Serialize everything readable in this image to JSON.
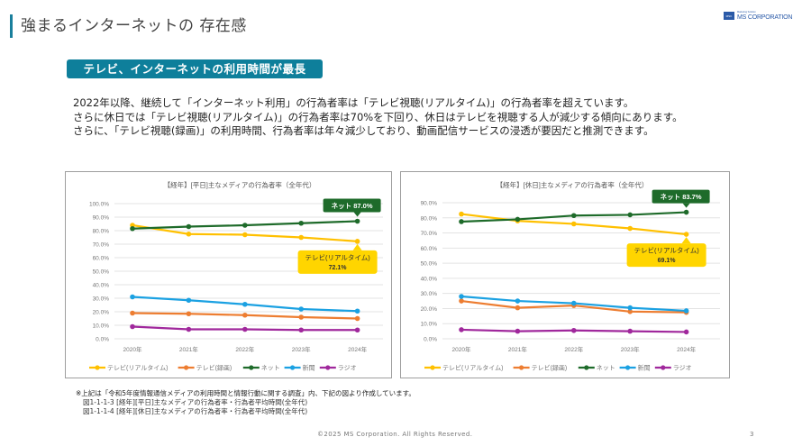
{
  "header": {
    "title": "強まるインターネットの 存在感",
    "logo": {
      "box_text": "MSC",
      "sub_text": "Marketing Solution",
      "main_text": "MS CORPORATION"
    }
  },
  "section": {
    "badge": "テレビ、インターネットの利用時間が最長"
  },
  "intro": {
    "lines": [
      "2022年以降、継続して「インターネット利用」の行為者率は「テレビ視聴(リアルタイム)」の行為者率を超えています。",
      "さらに休日では「テレビ視聴(リアルタイム)」の行為者率は70%を下回り、休日はテレビを視聴する人が減少する傾向にあります。",
      "さらに、「テレビ視聴(録画)」の利用時間、行為者率は年々減少しており、動画配信サービスの浸透が要因だと推測できます。"
    ]
  },
  "colors": {
    "tv_realtime": "#ffc000",
    "tv_recorded": "#ed7d31",
    "net": "#1e6b2a",
    "newspaper": "#1ba1e2",
    "radio": "#a0289c",
    "accent": "#0e7f9b",
    "callout_net": "#1e6b2a",
    "callout_tv": "#ffd500"
  },
  "chart_data": [
    {
      "type": "line",
      "title": "【経年】[平日]主なメディアの行為者率（全年代）",
      "categories": [
        "2020年",
        "2021年",
        "2022年",
        "2023年",
        "2024年"
      ],
      "ylim": [
        0,
        100
      ],
      "yticks": [
        "0.0%",
        "10.0%",
        "20.0%",
        "30.0%",
        "40.0%",
        "50.0%",
        "60.0%",
        "70.0%",
        "80.0%",
        "90.0%",
        "100.0%"
      ],
      "grid": true,
      "legend": "bottom",
      "series": [
        {
          "name": "テレビ(リアルタイム)",
          "key": "tv_realtime",
          "values": [
            84.0,
            77.5,
            77.0,
            75.0,
            72.1
          ]
        },
        {
          "name": "テレビ(録画)",
          "key": "tv_recorded",
          "values": [
            19.0,
            18.5,
            17.5,
            16.0,
            15.0
          ]
        },
        {
          "name": "ネット",
          "key": "net",
          "values": [
            81.5,
            83.0,
            84.0,
            85.5,
            87.0
          ]
        },
        {
          "name": "新聞",
          "key": "newspaper",
          "values": [
            31.0,
            28.5,
            25.5,
            22.0,
            20.5
          ]
        },
        {
          "name": "ラジオ",
          "key": "radio",
          "values": [
            9.0,
            7.0,
            7.0,
            6.5,
            6.5
          ]
        }
      ],
      "annotations": [
        {
          "series": "net",
          "text": "ネット 87.0%",
          "position": "above"
        },
        {
          "series": "tv_realtime",
          "text": "テレビ(リアルタイム)",
          "text2": "72.1%",
          "position": "below"
        }
      ]
    },
    {
      "type": "line",
      "title": "【経年】[休日]主なメディアの行為者率（全年代）",
      "categories": [
        "2020年",
        "2021年",
        "2022年",
        "2023年",
        "2024年"
      ],
      "ylim": [
        0,
        90
      ],
      "yticks": [
        "0.0%",
        "10.0%",
        "20.0%",
        "30.0%",
        "40.0%",
        "50.0%",
        "60.0%",
        "70.0%",
        "80.0%",
        "90.0%"
      ],
      "grid": true,
      "legend": "bottom",
      "series": [
        {
          "name": "テレビ(リアルタイム)",
          "key": "tv_realtime",
          "values": [
            82.5,
            78.0,
            76.0,
            73.0,
            69.1
          ]
        },
        {
          "name": "テレビ(録画)",
          "key": "tv_recorded",
          "values": [
            25.0,
            20.5,
            22.0,
            18.0,
            17.5
          ]
        },
        {
          "name": "ネット",
          "key": "net",
          "values": [
            77.5,
            79.0,
            81.5,
            82.0,
            83.7
          ]
        },
        {
          "name": "新聞",
          "key": "newspaper",
          "values": [
            28.0,
            25.0,
            23.5,
            20.5,
            18.5
          ]
        },
        {
          "name": "ラジオ",
          "key": "radio",
          "values": [
            6.0,
            5.0,
            5.5,
            5.0,
            4.5
          ]
        }
      ],
      "annotations": [
        {
          "series": "net",
          "text": "ネット 83.7%",
          "position": "above"
        },
        {
          "series": "tv_realtime",
          "text": "テレビ(リアルタイム)",
          "text2": "69.1%",
          "position": "below"
        }
      ]
    }
  ],
  "note": {
    "main": "※上記は「令和5年度情報通信メディアの利用時間と情報行動に関する調査」内、下記の図より作成しています。",
    "refs": [
      "図1-1-1-3 [経年][平日]主なメディアの行為者率・行為者平均時間(全年代)",
      "図1-1-1-4 [経年][休日]主なメディアの行為者率・行為者平均時間(全年代)"
    ]
  },
  "footer": {
    "copyright": "©2025 MS Corporation. All Rights Reserved.",
    "page": "3"
  }
}
